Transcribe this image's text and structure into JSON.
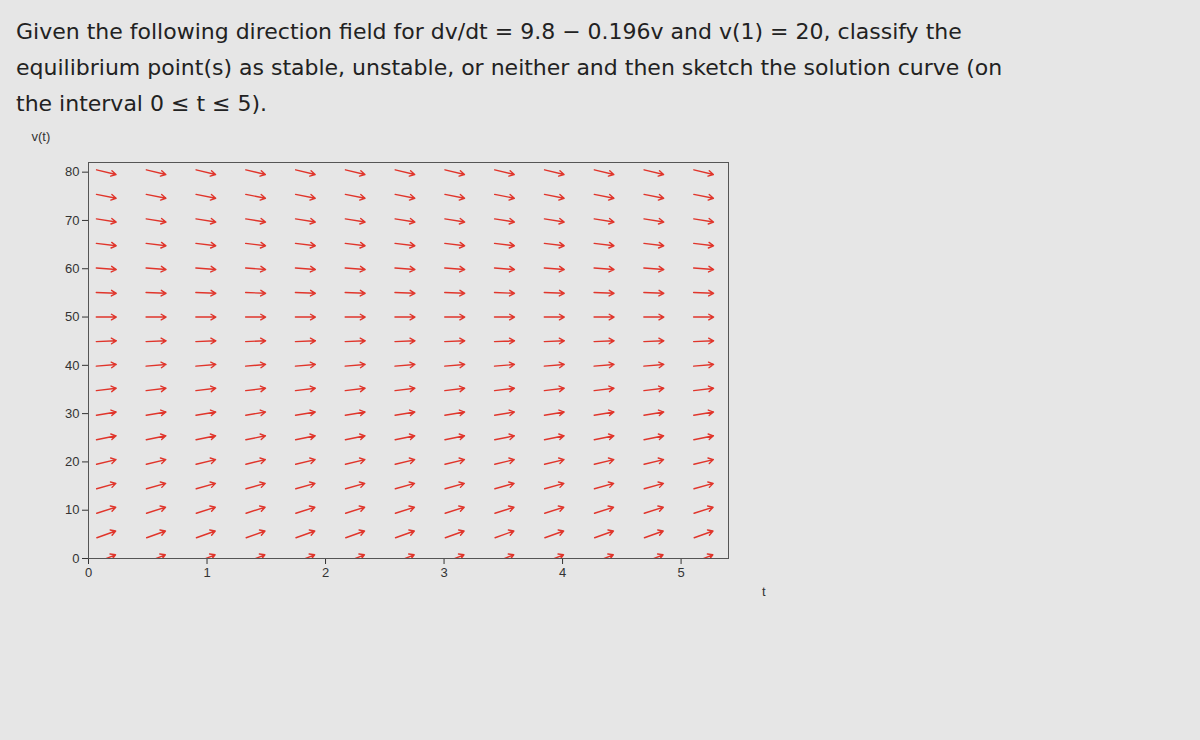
{
  "chart_data": {
    "type": "direction_field",
    "title": "Given the following direction field for dv/dt = 9.8 − 0.196v and v(1) = 20, classify the equilibrium point(s) as stable, unstable, or neither and then sketch the solution curve (on the interval 0 ≤ t ≤ 5).",
    "x_label": "t",
    "y_label": "v(t)",
    "xlim": [
      0,
      5.4
    ],
    "ylim": [
      0,
      82
    ],
    "xticks": [
      0,
      1,
      2,
      3,
      4,
      5
    ],
    "yticks": [
      0,
      10,
      20,
      30,
      40,
      50,
      60,
      70,
      80
    ],
    "x": [
      0.15,
      0.57,
      0.99,
      1.41,
      1.83,
      2.25,
      2.67,
      3.09,
      3.51,
      3.93,
      4.35,
      4.77,
      5.19
    ],
    "y": [
      0,
      5,
      10,
      15,
      20,
      25,
      30,
      35,
      40,
      45,
      50,
      55,
      60,
      65,
      70,
      75,
      80
    ],
    "slopes": [
      9.8,
      8.82,
      7.84,
      6.86,
      5.88,
      4.9,
      3.92,
      2.94,
      1.96,
      0.98,
      0,
      -0.98,
      -1.96,
      -2.94,
      -3.92,
      -4.9,
      -5.88
    ],
    "color": "#e0352b",
    "grid": false
  }
}
